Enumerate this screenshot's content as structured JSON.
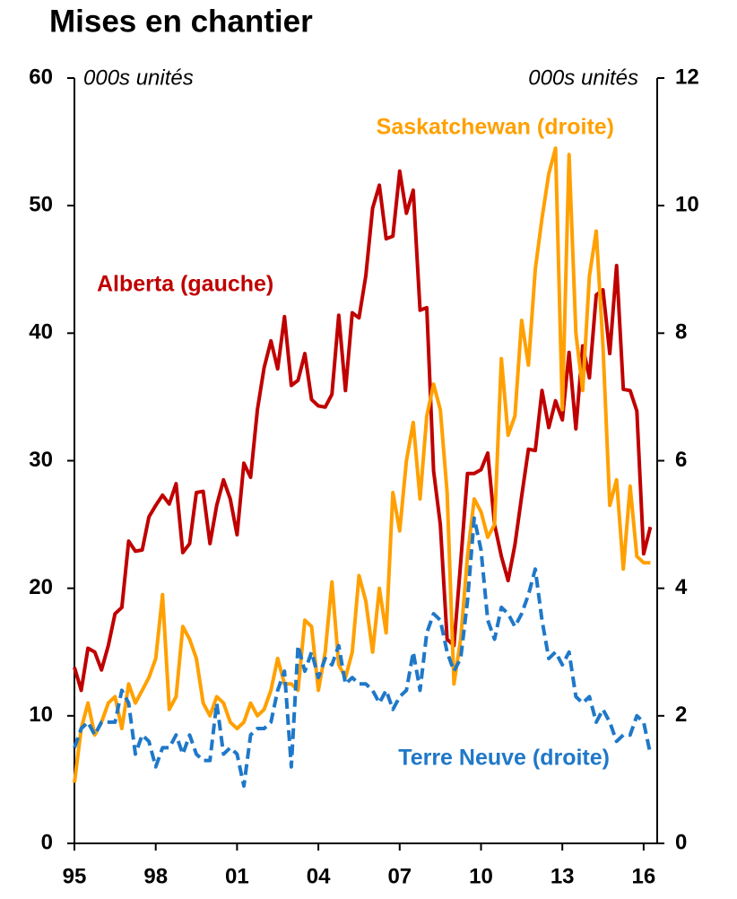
{
  "chart_data": {
    "type": "line",
    "title": "Mises en chantier",
    "annotations": [
      "000s unités",
      "000s unités"
    ],
    "x": [
      1995,
      1995.25,
      1995.5,
      1995.75,
      1996,
      1996.25,
      1996.5,
      1996.75,
      1997,
      1997.25,
      1997.5,
      1997.75,
      1998,
      1998.25,
      1998.5,
      1998.75,
      1999,
      1999.25,
      1999.5,
      1999.75,
      2000,
      2000.25,
      2000.5,
      2000.75,
      2001,
      2001.25,
      2001.5,
      2001.75,
      2002,
      2002.25,
      2002.5,
      2002.75,
      2003,
      2003.25,
      2003.5,
      2003.75,
      2004,
      2004.25,
      2004.5,
      2004.75,
      2005,
      2005.25,
      2005.5,
      2005.75,
      2006,
      2006.25,
      2006.5,
      2006.75,
      2007,
      2007.25,
      2007.5,
      2007.75,
      2008,
      2008.25,
      2008.5,
      2008.75,
      2009,
      2009.25,
      2009.5,
      2009.75,
      2010,
      2010.25,
      2010.5,
      2010.75,
      2011,
      2011.25,
      2011.5,
      2011.75,
      2012,
      2012.25,
      2012.5,
      2012.75,
      2013,
      2013.25,
      2013.5,
      2013.75,
      2014,
      2014.25,
      2014.5,
      2014.75,
      2015,
      2015.25,
      2015.5,
      2015.75,
      2016,
      2016.25
    ],
    "series": [
      {
        "name": "Alberta (gauche)",
        "color": "#c00000",
        "axis": "y",
        "dashed": false,
        "values": [
          13.8,
          12.0,
          15.3,
          15.0,
          13.6,
          15.5,
          18.0,
          18.5,
          23.7,
          22.9,
          23.0,
          25.6,
          26.5,
          27.3,
          26.6,
          28.2,
          22.8,
          23.5,
          27.5,
          27.6,
          23.5,
          26.5,
          28.5,
          27.0,
          24.2,
          29.8,
          28.7,
          34.0,
          37.3,
          39.4,
          37.2,
          41.3,
          35.9,
          36.3,
          38.4,
          34.8,
          34.3,
          34.2,
          35.2,
          41.4,
          35.5,
          41.6,
          41.2,
          44.5,
          49.8,
          51.6,
          47.4,
          47.6,
          52.7,
          49.4,
          51.2,
          41.8,
          42.0,
          29.2,
          25.0,
          16.0,
          15.5,
          22.0,
          29.0,
          29.0,
          29.3,
          30.6,
          25.0,
          22.5,
          20.6,
          23.4,
          27.2,
          30.9,
          30.8,
          35.5,
          32.6,
          34.7,
          33.2,
          38.5,
          32.5,
          39.0,
          36.5,
          43.0,
          43.4,
          38.4,
          45.3,
          35.6,
          35.5,
          33.9,
          22.7,
          24.8
        ]
      },
      {
        "name": "Saskatchewan (droite)",
        "color": "#ffa000",
        "axis": "y2",
        "dashed": false,
        "values": [
          0.95,
          1.8,
          2.2,
          1.7,
          1.9,
          2.2,
          2.3,
          1.8,
          2.5,
          2.2,
          2.4,
          2.6,
          2.9,
          3.9,
          2.1,
          2.3,
          3.4,
          3.2,
          2.9,
          2.2,
          2.0,
          2.3,
          2.2,
          1.9,
          1.8,
          1.9,
          2.2,
          2.0,
          2.1,
          2.4,
          2.9,
          2.5,
          2.5,
          2.4,
          3.5,
          3.4,
          2.4,
          3.0,
          4.1,
          2.8,
          2.6,
          3.0,
          4.2,
          3.8,
          3.0,
          4.0,
          3.3,
          5.5,
          4.9,
          6.0,
          6.6,
          5.4,
          6.7,
          7.2,
          6.8,
          5.5,
          2.5,
          3.2,
          4.5,
          5.4,
          5.2,
          4.8,
          5.0,
          7.6,
          6.4,
          6.7,
          8.2,
          7.5,
          9.0,
          9.8,
          10.5,
          10.9,
          6.8,
          10.8,
          8.0,
          7.1,
          8.9,
          9.6,
          7.8,
          5.3,
          5.7,
          4.3,
          5.6,
          4.5,
          4.4,
          4.4
        ]
      },
      {
        "name": "Terre Neuve (droite)",
        "color": "#1f78c8",
        "axis": "y2",
        "dashed": true,
        "values": [
          1.5,
          1.8,
          1.9,
          1.7,
          1.9,
          1.9,
          1.9,
          2.4,
          2.2,
          1.4,
          1.7,
          1.6,
          1.2,
          1.5,
          1.5,
          1.7,
          1.4,
          1.7,
          1.4,
          1.3,
          1.3,
          2.2,
          1.4,
          1.5,
          1.4,
          0.9,
          1.7,
          1.8,
          1.8,
          1.9,
          2.4,
          2.7,
          1.2,
          3.1,
          2.7,
          3.0,
          2.6,
          2.9,
          2.8,
          3.1,
          2.5,
          2.6,
          2.5,
          2.5,
          2.4,
          2.2,
          2.4,
          2.1,
          2.3,
          2.4,
          3.0,
          2.4,
          3.3,
          3.6,
          3.5,
          3.0,
          2.7,
          2.9,
          3.8,
          5.1,
          4.6,
          3.5,
          3.2,
          3.7,
          3.6,
          3.4,
          3.6,
          3.9,
          4.3,
          3.5,
          2.9,
          3.0,
          2.8,
          3.0,
          2.3,
          2.2,
          2.3,
          1.9,
          2.1,
          1.9,
          1.6,
          1.7,
          1.7,
          2.0,
          1.9,
          1.4
        ]
      }
    ],
    "xlim": [
      1995,
      2016.5
    ],
    "xticks": [
      {
        "value": 1995,
        "label": "95"
      },
      {
        "value": 1998,
        "label": "98"
      },
      {
        "value": 2001,
        "label": "01"
      },
      {
        "value": 2004,
        "label": "04"
      },
      {
        "value": 2007,
        "label": "07"
      },
      {
        "value": 2010,
        "label": "10"
      },
      {
        "value": 2013,
        "label": "13"
      },
      {
        "value": 2016,
        "label": "16"
      }
    ],
    "ylim": [
      0,
      60
    ],
    "yticks": [
      0,
      10,
      20,
      30,
      40,
      50,
      60
    ],
    "y2lim": [
      0,
      12
    ],
    "y2ticks": [
      0,
      2,
      4,
      6,
      8,
      10,
      12
    ]
  }
}
